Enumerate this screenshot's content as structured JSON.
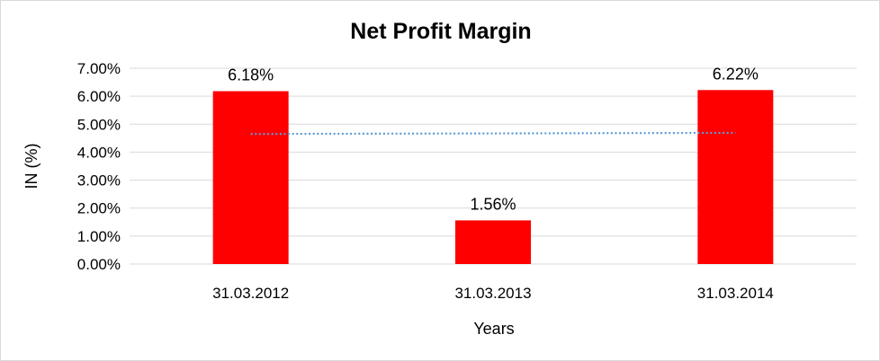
{
  "chart_data": {
    "type": "bar",
    "title": "Net Profit Margin",
    "xlabel": "Years",
    "ylabel": "IN (%)",
    "categories": [
      "31.03.2012",
      "31.03.2013",
      "31.03.2014"
    ],
    "values": [
      6.18,
      1.56,
      6.22
    ],
    "data_labels": [
      "6.18%",
      "1.56%",
      "6.22%"
    ],
    "ylim": [
      0,
      7
    ],
    "y_ticks": [
      0,
      1,
      2,
      3,
      4,
      5,
      6,
      7
    ],
    "y_tick_labels": [
      "0.00%",
      "1.00%",
      "2.00%",
      "3.00%",
      "4.00%",
      "5.00%",
      "6.00%",
      "7.00%"
    ],
    "trendline": {
      "type": "linear",
      "start": 4.65,
      "end": 4.69
    },
    "grid": true,
    "legend": "none",
    "colors": {
      "bar": "#ff0000",
      "trendline": "#5b9bd5",
      "grid": "#d9d9d9"
    }
  }
}
